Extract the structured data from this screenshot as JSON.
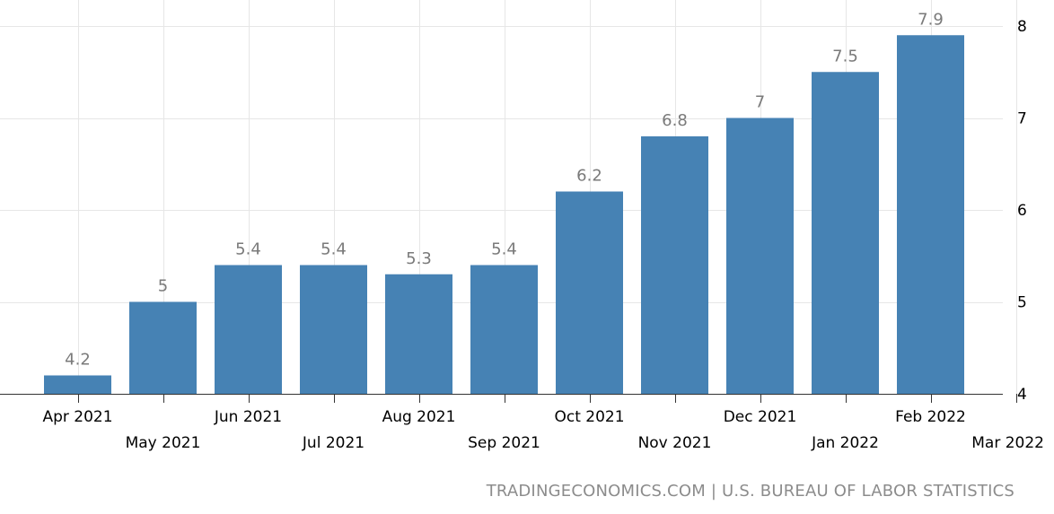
{
  "chart_data": {
    "type": "bar",
    "categories": [
      "Apr 2021",
      "May 2021",
      "Jun 2021",
      "Jul 2021",
      "Aug 2021",
      "Sep 2021",
      "Oct 2021",
      "Nov 2021",
      "Dec 2021",
      "Jan 2022",
      "Feb 2022"
    ],
    "values": [
      4.2,
      5,
      5.4,
      5.4,
      5.3,
      5.4,
      6.2,
      6.8,
      7,
      7.5,
      7.9
    ],
    "data_labels": [
      "4.2",
      "5",
      "5.4",
      "5.4",
      "5.3",
      "5.4",
      "6.2",
      "6.8",
      "7",
      "7.5",
      "7.9"
    ],
    "x_tick_labels": [
      "Apr 2021",
      "May 2021",
      "Jun 2021",
      "Jul 2021",
      "Aug 2021",
      "Sep 2021",
      "Oct 2021",
      "Nov 2021",
      "Dec 2021",
      "Jan 2022",
      "Feb 2022",
      "Mar 2022"
    ],
    "y_ticks": [
      4,
      5,
      6,
      7,
      8
    ],
    "ylim": [
      4,
      8
    ],
    "y_axis_position": "right",
    "grid": true,
    "bar_color": "#4682b4",
    "data_label_color": "#7a7a7a",
    "title": "",
    "xlabel": "",
    "ylabel": ""
  },
  "source": "TRADINGECONOMICS.COM | U.S. BUREAU OF LABOR STATISTICS"
}
